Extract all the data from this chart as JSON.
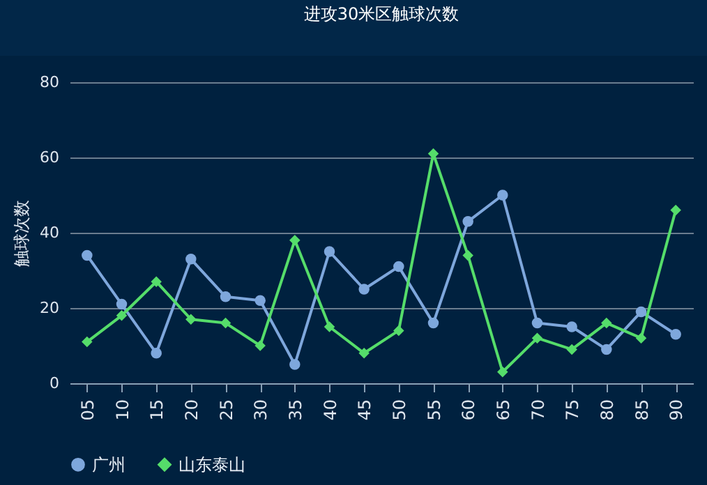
{
  "chart_data": {
    "type": "line",
    "title": "进攻30米区触球次数",
    "ylabel": "触球次数",
    "categories": [
      "05",
      "10",
      "15",
      "20",
      "25",
      "30",
      "35",
      "40",
      "45",
      "50",
      "55",
      "60",
      "65",
      "70",
      "75",
      "80",
      "85",
      "90"
    ],
    "series": [
      {
        "name": "广州",
        "color": "#7ea7dc",
        "marker": "circle",
        "values": [
          34,
          21,
          8,
          33,
          23,
          22,
          5,
          35,
          25,
          31,
          16,
          43,
          50,
          16,
          15,
          9,
          19,
          13
        ]
      },
      {
        "name": "山东泰山",
        "color": "#55dd6a",
        "marker": "diamond",
        "values": [
          11,
          18,
          27,
          17,
          16,
          10,
          38,
          15,
          8,
          14,
          61,
          34,
          3,
          12,
          9,
          16,
          12,
          46
        ]
      }
    ],
    "ylim": [
      0,
      80
    ],
    "yticks": [
      0,
      20,
      40,
      60,
      80
    ],
    "grid": "y",
    "legend": "bottom",
    "line_style": "solid"
  }
}
